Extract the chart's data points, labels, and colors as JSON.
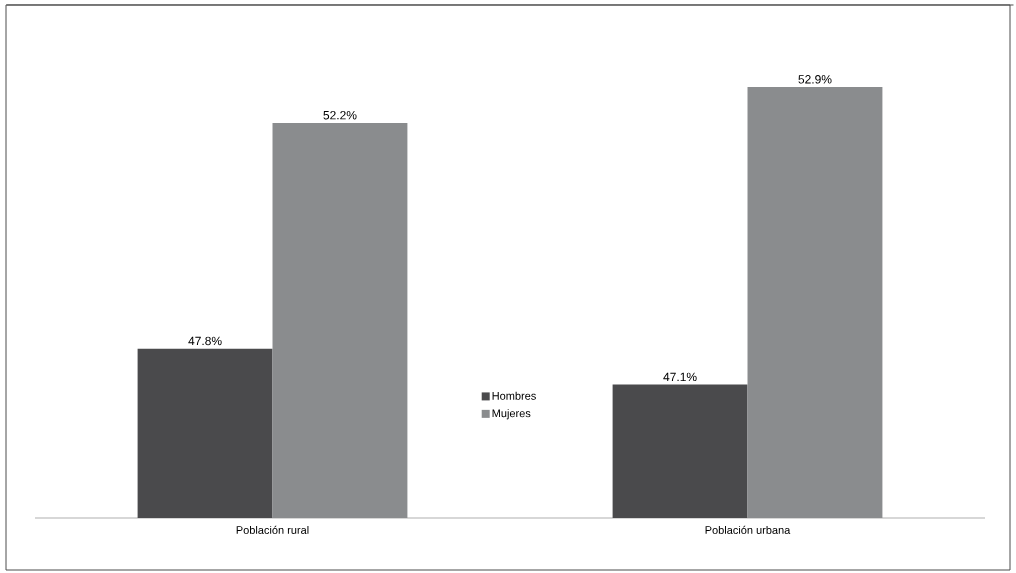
{
  "chart_data": {
    "type": "bar",
    "categories": [
      "Población rural",
      "Población urbana"
    ],
    "series": [
      {
        "name": "Hombres",
        "color": "#4a4a4c",
        "values": [
          47.8,
          47.1
        ],
        "value_labels": [
          "47.8%",
          "47.1%"
        ]
      },
      {
        "name": "Mujeres",
        "color": "#8a8c8e",
        "values": [
          52.2,
          52.9
        ],
        "value_labels": [
          "52.2%",
          "52.9%"
        ]
      }
    ],
    "ylim": [
      44.5,
      54.5
    ],
    "tick_labels": "x",
    "legend": "center"
  }
}
